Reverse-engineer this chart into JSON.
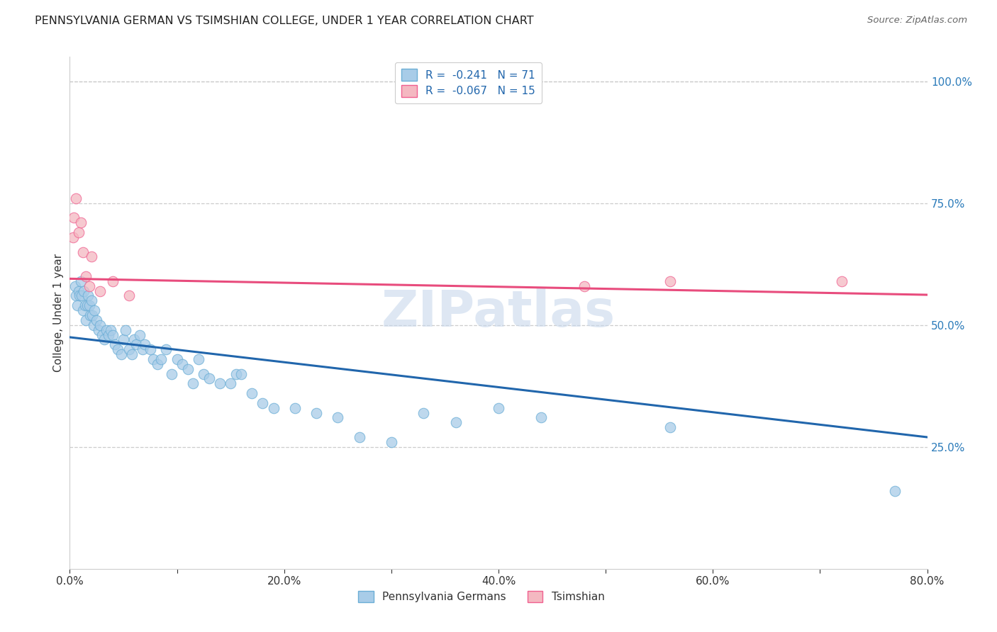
{
  "title": "PENNSYLVANIA GERMAN VS TSIMSHIAN COLLEGE, UNDER 1 YEAR CORRELATION CHART",
  "source": "Source: ZipAtlas.com",
  "ylabel": "College, Under 1 year",
  "xlim": [
    0.0,
    0.8
  ],
  "ylim": [
    0.0,
    1.05
  ],
  "xtick_values": [
    0.0,
    0.1,
    0.2,
    0.3,
    0.4,
    0.5,
    0.6,
    0.7,
    0.8
  ],
  "xtick_labels": [
    "0.0%",
    "",
    "20.0%",
    "",
    "40.0%",
    "",
    "60.0%",
    "",
    "80.0%"
  ],
  "ytick_right_values": [
    1.0,
    0.75,
    0.5,
    0.25
  ],
  "ytick_right_labels": [
    "100.0%",
    "75.0%",
    "50.0%",
    "25.0%"
  ],
  "r_blue": -0.241,
  "n_blue": 71,
  "r_pink": -0.067,
  "n_pink": 15,
  "blue_color": "#a8cce8",
  "blue_edge_color": "#6baed6",
  "pink_color": "#f4b8c1",
  "pink_edge_color": "#f06090",
  "blue_line_color": "#2166ac",
  "pink_line_color": "#e84c7d",
  "watermark": "ZIPatlas",
  "legend_labels": [
    "Pennsylvania Germans",
    "Tsimshian"
  ],
  "blue_scatter_x": [
    0.005,
    0.006,
    0.007,
    0.008,
    0.009,
    0.01,
    0.011,
    0.012,
    0.013,
    0.014,
    0.015,
    0.016,
    0.017,
    0.018,
    0.019,
    0.02,
    0.021,
    0.022,
    0.023,
    0.025,
    0.027,
    0.028,
    0.03,
    0.032,
    0.034,
    0.036,
    0.038,
    0.04,
    0.042,
    0.045,
    0.048,
    0.05,
    0.052,
    0.055,
    0.058,
    0.06,
    0.062,
    0.065,
    0.068,
    0.07,
    0.075,
    0.078,
    0.082,
    0.085,
    0.09,
    0.095,
    0.1,
    0.105,
    0.11,
    0.115,
    0.12,
    0.125,
    0.13,
    0.14,
    0.15,
    0.155,
    0.16,
    0.17,
    0.18,
    0.19,
    0.21,
    0.23,
    0.25,
    0.27,
    0.3,
    0.33,
    0.36,
    0.4,
    0.44,
    0.56,
    0.77
  ],
  "blue_scatter_y": [
    0.58,
    0.56,
    0.54,
    0.57,
    0.56,
    0.59,
    0.56,
    0.53,
    0.57,
    0.54,
    0.51,
    0.54,
    0.56,
    0.54,
    0.52,
    0.55,
    0.52,
    0.5,
    0.53,
    0.51,
    0.49,
    0.5,
    0.48,
    0.47,
    0.49,
    0.48,
    0.49,
    0.48,
    0.46,
    0.45,
    0.44,
    0.47,
    0.49,
    0.45,
    0.44,
    0.47,
    0.46,
    0.48,
    0.45,
    0.46,
    0.45,
    0.43,
    0.42,
    0.43,
    0.45,
    0.4,
    0.43,
    0.42,
    0.41,
    0.38,
    0.43,
    0.4,
    0.39,
    0.38,
    0.38,
    0.4,
    0.4,
    0.36,
    0.34,
    0.33,
    0.33,
    0.32,
    0.31,
    0.27,
    0.26,
    0.32,
    0.3,
    0.33,
    0.31,
    0.29,
    0.16
  ],
  "pink_scatter_x": [
    0.003,
    0.004,
    0.006,
    0.008,
    0.01,
    0.012,
    0.015,
    0.018,
    0.02,
    0.028,
    0.04,
    0.055,
    0.48,
    0.56,
    0.72
  ],
  "pink_scatter_y": [
    0.68,
    0.72,
    0.76,
    0.69,
    0.71,
    0.65,
    0.6,
    0.58,
    0.64,
    0.57,
    0.59,
    0.56,
    0.58,
    0.59,
    0.59
  ],
  "blue_line_x0": 0.0,
  "blue_line_y0": 0.475,
  "blue_line_x1": 0.8,
  "blue_line_y1": 0.27,
  "pink_line_x0": 0.0,
  "pink_line_y0": 0.595,
  "pink_line_x1": 0.8,
  "pink_line_y1": 0.562
}
